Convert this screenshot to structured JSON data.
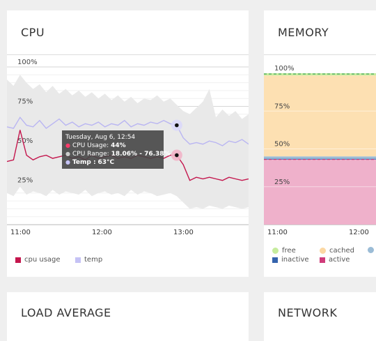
{
  "cpu": {
    "title": "CPU",
    "y_ticks": [
      "100%",
      "75%",
      "50%",
      "25%"
    ],
    "x_ticks": [
      "11:00",
      "12:00",
      "13:00"
    ],
    "legend": [
      {
        "label": "cpu usage",
        "color": "#c4164d"
      },
      {
        "label": "temp",
        "color": "#c5c2f5"
      }
    ],
    "tooltip": {
      "date": "Tuesday, Aug 6, 12:54",
      "usage_label": "CPU Usage:",
      "usage_value": "44%",
      "range_label": "CPU Range:",
      "range_value": "18.06% - 76.38%",
      "temp_label": "Temp :",
      "temp_value": "63°C"
    }
  },
  "memory": {
    "title": "MEMORY",
    "y_ticks": [
      "100%",
      "75%",
      "50%",
      "25%"
    ],
    "x_ticks": [
      "11:00",
      "12:00"
    ],
    "legend": [
      {
        "label": "free",
        "color": "#c6ec9d",
        "shape": "dot"
      },
      {
        "label": "cached",
        "color": "#fcd8a3",
        "shape": "dot"
      },
      {
        "label": "",
        "color": "#9bbcd6",
        "shape": "dot"
      },
      {
        "label": "inactive",
        "color": "#3564ad",
        "shape": "square"
      },
      {
        "label": "active",
        "color": "#d03b7a",
        "shape": "square"
      }
    ]
  },
  "load": {
    "title": "LOAD AVERAGE"
  },
  "network": {
    "title": "NETWORK"
  },
  "chart_data": [
    {
      "type": "area",
      "ylim": [
        0,
        100
      ],
      "x": [
        "10:45",
        "10:50",
        "10:55",
        "11:00",
        "11:05",
        "11:10",
        "11:15",
        "11:20",
        "11:25",
        "11:30",
        "11:35",
        "11:40",
        "11:45",
        "11:50",
        "11:55",
        "12:00",
        "12:05",
        "12:10",
        "12:15",
        "12:20",
        "12:25",
        "12:30",
        "12:35",
        "12:40",
        "12:45",
        "12:50",
        "12:54",
        "12:58",
        "13:02",
        "13:06",
        "13:10",
        "13:15",
        "13:20",
        "13:25",
        "13:30",
        "13:35",
        "13:40",
        "13:45"
      ],
      "series": [
        {
          "name": "cpu usage",
          "values": [
            40,
            41,
            60,
            44,
            41,
            43,
            44,
            42,
            43,
            44,
            42,
            43,
            41,
            44,
            42,
            43,
            44,
            42,
            43,
            42,
            44,
            43,
            42,
            43,
            42,
            44,
            44,
            38,
            28,
            30,
            29,
            30,
            29,
            28,
            30,
            29,
            28,
            29
          ]
        },
        {
          "name": "temp",
          "values": [
            62,
            61,
            68,
            63,
            62,
            66,
            61,
            64,
            67,
            63,
            65,
            62,
            64,
            63,
            65,
            62,
            64,
            63,
            66,
            62,
            64,
            63,
            65,
            64,
            66,
            64,
            63,
            55,
            51,
            52,
            51,
            53,
            52,
            50,
            53,
            52,
            54,
            51
          ]
        }
      ],
      "range": {
        "low": [
          20,
          18,
          24,
          19,
          21,
          20,
          18,
          22,
          19,
          21,
          20,
          19,
          22,
          18,
          20,
          21,
          19,
          20,
          18,
          22,
          19,
          21,
          20,
          18,
          19,
          20,
          18,
          14,
          10,
          11,
          10,
          12,
          11,
          10,
          12,
          11,
          10,
          11
        ],
        "high": [
          92,
          88,
          95,
          90,
          86,
          89,
          84,
          88,
          83,
          86,
          82,
          85,
          81,
          84,
          80,
          83,
          79,
          82,
          78,
          81,
          77,
          80,
          79,
          82,
          78,
          80,
          76,
          72,
          70,
          74,
          78,
          86,
          68,
          73,
          69,
          72,
          67,
          70
        ]
      }
    },
    {
      "type": "area",
      "ylim": [
        0,
        100
      ],
      "x": [
        "10:50",
        "11:00",
        "11:10",
        "11:20",
        "11:30",
        "11:40",
        "11:50",
        "12:00",
        "12:10",
        "12:20"
      ],
      "series": [
        {
          "name": "active",
          "values": [
            43,
            43,
            43,
            43,
            43,
            43,
            43,
            43,
            43,
            43
          ]
        },
        {
          "name": "inactive",
          "values": [
            0.5,
            0.5,
            0.5,
            0.5,
            0.5,
            0.5,
            0.5,
            0.5,
            0.5,
            0.5
          ]
        },
        {
          "name": "",
          "values": [
            1.5,
            1.5,
            1.5,
            1.5,
            1.5,
            1.5,
            1.5,
            1.5,
            1.5,
            1.5
          ]
        },
        {
          "name": "cached",
          "values": [
            53.5,
            53.5,
            53.5,
            53.5,
            53.5,
            53.5,
            53.5,
            53.5,
            53.5,
            53.5
          ]
        },
        {
          "name": "free",
          "values": [
            1.5,
            1.5,
            1.5,
            1.5,
            1.5,
            1.5,
            1.5,
            1.5,
            1.5,
            1.5
          ]
        }
      ]
    }
  ]
}
